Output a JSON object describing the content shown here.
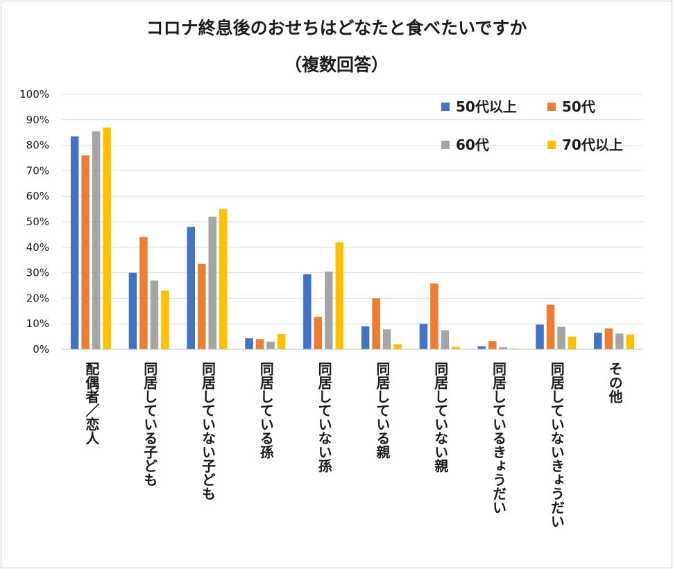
{
  "chart_data": {
    "type": "bar",
    "title": "コロナ終息後のおせちはどなたと食べたいですか",
    "subtitle": "（複数回答）",
    "categories": [
      "配偶者／恋人",
      "同居している子ども",
      "同居していない子ども",
      "同居している孫",
      "同居していない孫",
      "同居している親",
      "同居していない親",
      "同居しているきょうだい",
      "同居していないきょうだい",
      "その他"
    ],
    "series": [
      {
        "name": "50代以上",
        "color": "#4472c4",
        "values": [
          83.5,
          30.0,
          48.0,
          4.3,
          29.5,
          9.0,
          10.0,
          1.2,
          9.7,
          6.5
        ]
      },
      {
        "name": "50代",
        "color": "#ed7d31",
        "values": [
          76.0,
          44.0,
          33.5,
          4.0,
          12.7,
          20.0,
          25.8,
          3.2,
          17.5,
          8.2
        ]
      },
      {
        "name": "60代",
        "color": "#a5a5a5",
        "values": [
          85.5,
          27.0,
          52.0,
          3.0,
          30.5,
          7.8,
          7.5,
          0.8,
          8.8,
          6.2
        ]
      },
      {
        "name": "70代以上",
        "color": "#ffc000",
        "values": [
          87.0,
          23.0,
          55.0,
          6.0,
          42.0,
          2.0,
          1.0,
          0.3,
          5.0,
          5.8
        ]
      }
    ],
    "ylim": [
      0,
      100
    ],
    "yticks": [
      "0%",
      "10%",
      "20%",
      "30%",
      "40%",
      "50%",
      "60%",
      "70%",
      "80%",
      "90%",
      "100%"
    ],
    "xlabel": "",
    "ylabel": "",
    "grid": true,
    "legend_position": "top-right"
  }
}
